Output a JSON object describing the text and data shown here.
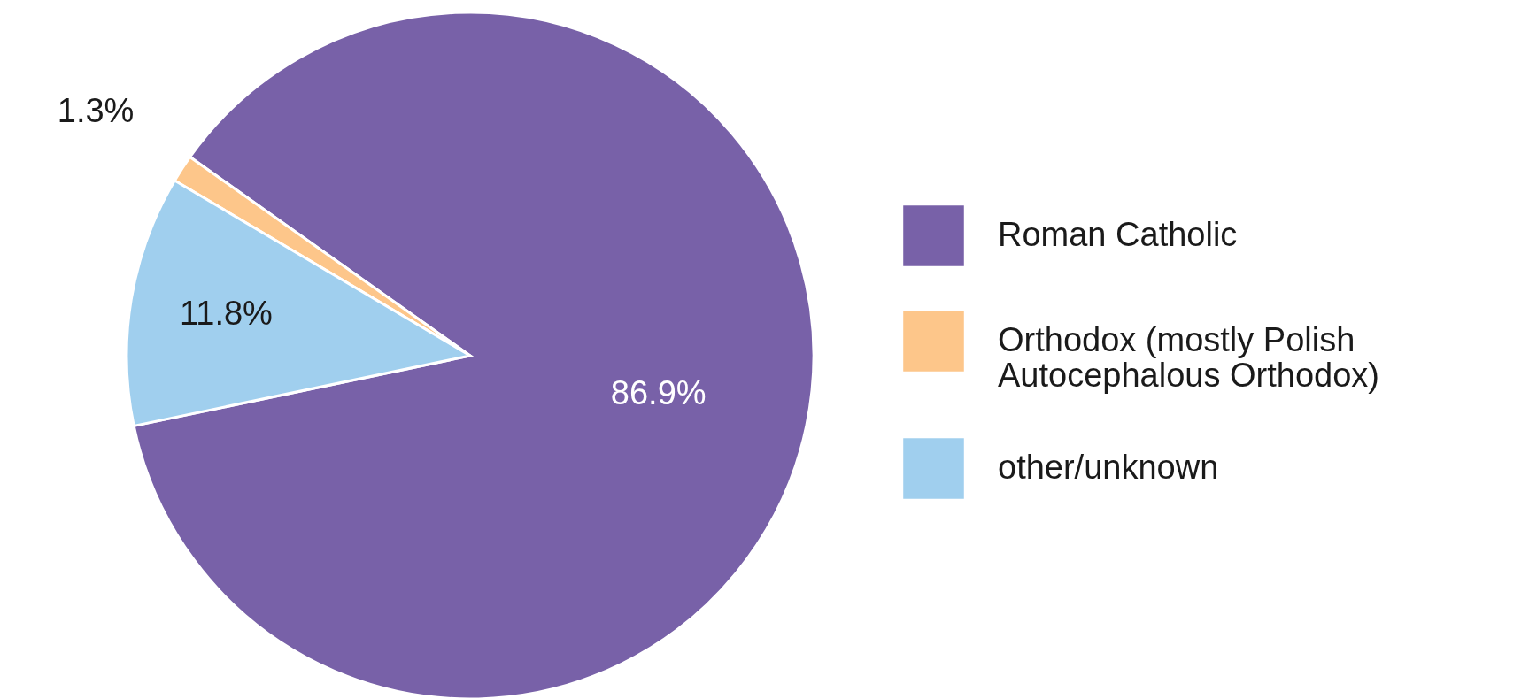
{
  "chart_data": {
    "type": "pie",
    "categories": [
      "Roman Catholic",
      "Orthodox (mostly Polish Autocephalous Orthodox)",
      "other/unknown"
    ],
    "values": [
      86.9,
      1.3,
      11.8
    ],
    "colors": [
      "#7861a8",
      "#fdc68a",
      "#a0cfee"
    ],
    "value_labels": [
      "86.9%",
      "1.3%",
      "11.8%"
    ],
    "legend": "right"
  }
}
